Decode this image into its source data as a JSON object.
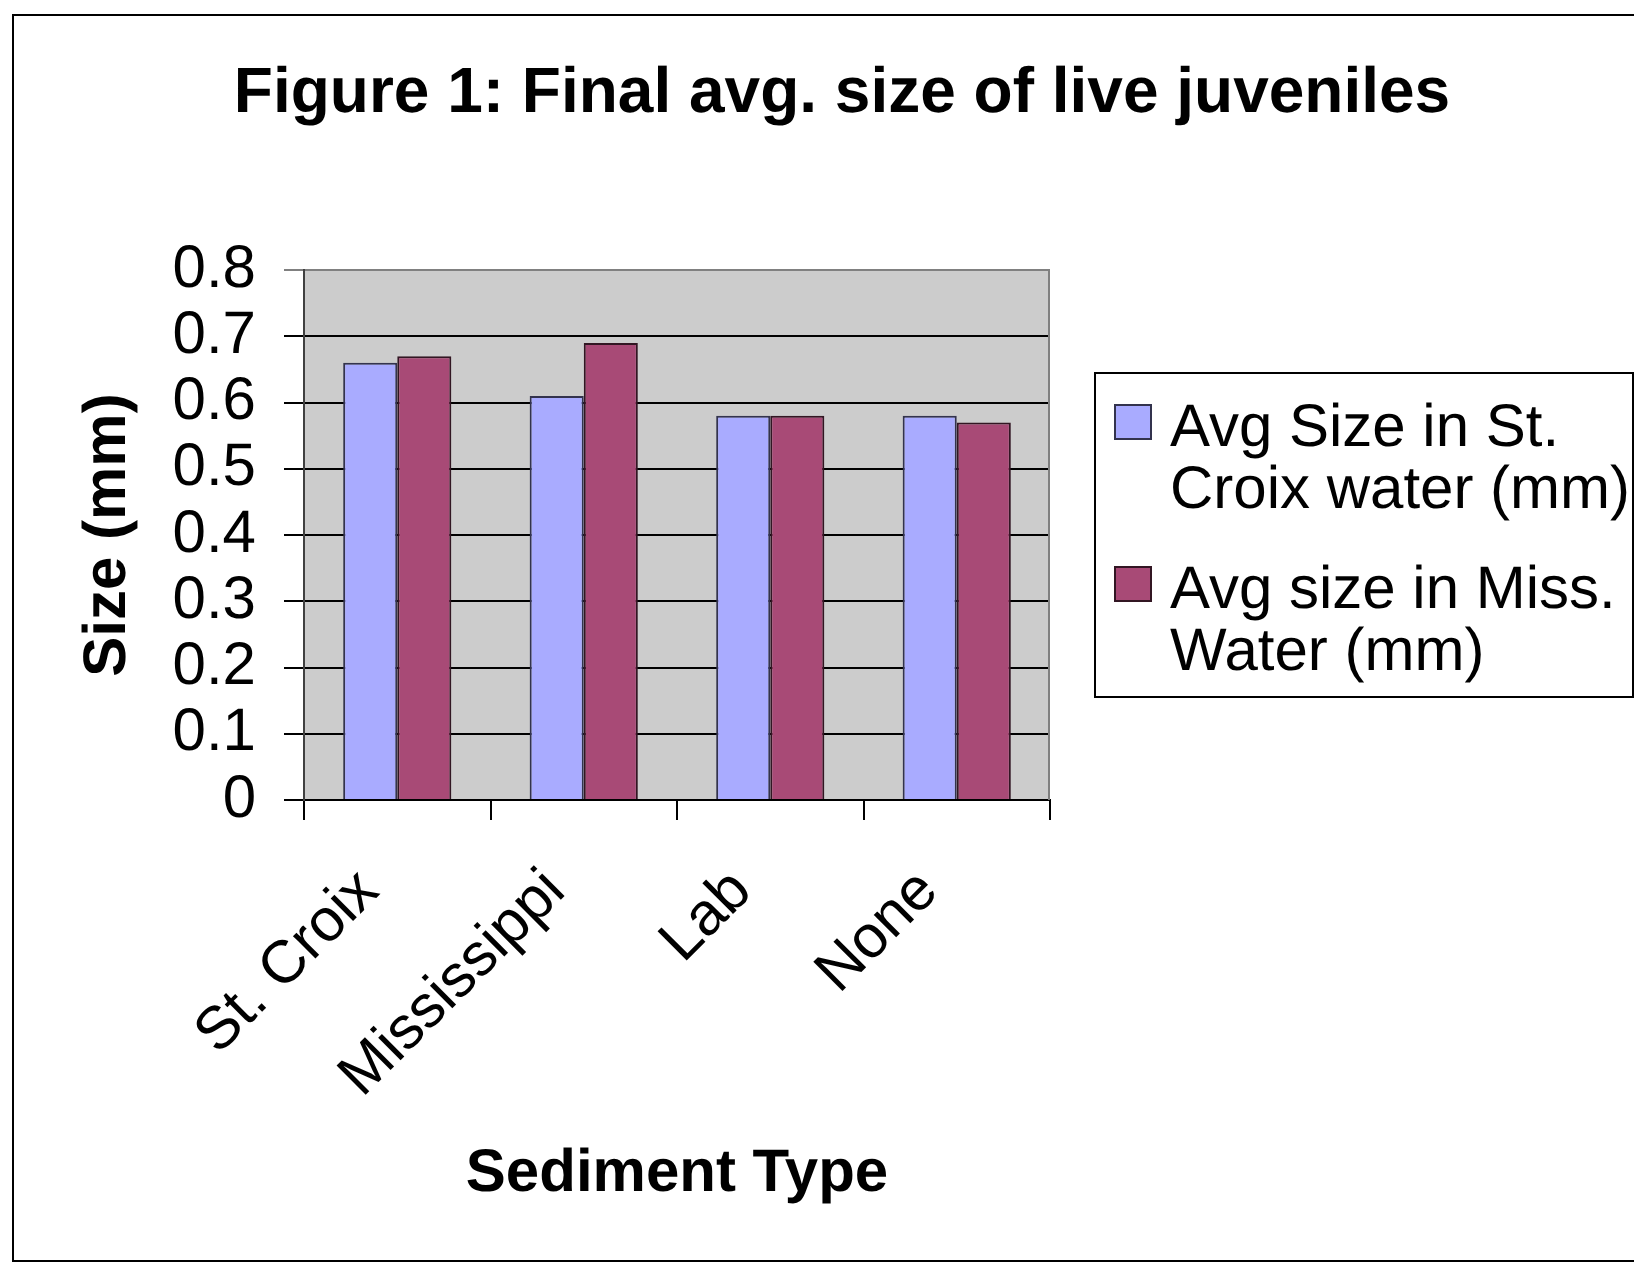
{
  "chart_data": {
    "type": "bar",
    "title": "Figure 1: Final avg. size of live juveniles",
    "xlabel": "Sediment Type",
    "ylabel": "Size (mm)",
    "categories": [
      "St. Croix",
      "Mississippi",
      "Lab",
      "None"
    ],
    "series": [
      {
        "name": "Avg Size in St. Croix water (mm)",
        "color": "#a9abff",
        "values": [
          0.66,
          0.61,
          0.58,
          0.58
        ]
      },
      {
        "name": "Avg size in Miss. Water (mm)",
        "color": "#a84a76",
        "values": [
          0.67,
          0.69,
          0.58,
          0.57
        ]
      }
    ],
    "ylim": [
      0,
      0.8
    ],
    "yticks": [
      0,
      0.1,
      0.2,
      0.3,
      0.4,
      0.5,
      0.6,
      0.7,
      0.8
    ],
    "grid": "y",
    "legend": "right"
  }
}
